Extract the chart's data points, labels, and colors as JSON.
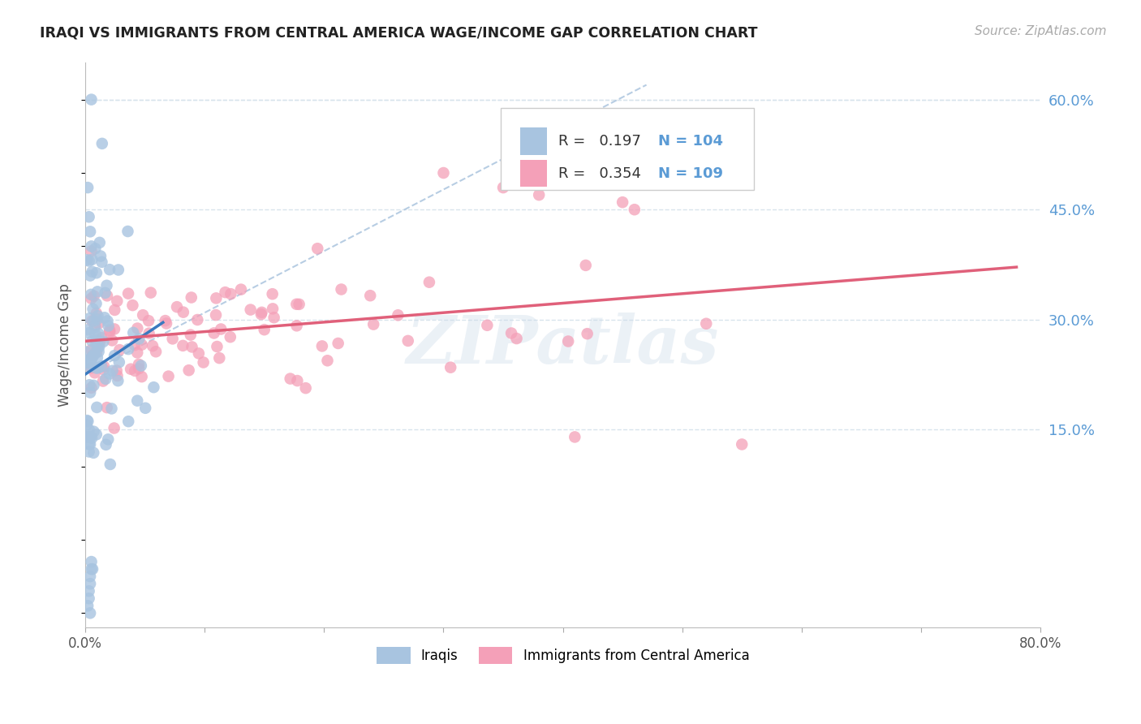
{
  "title": "IRAQI VS IMMIGRANTS FROM CENTRAL AMERICA WAGE/INCOME GAP CORRELATION CHART",
  "source": "Source: ZipAtlas.com",
  "ylabel": "Wage/Income Gap",
  "xlim": [
    0.0,
    0.8
  ],
  "ylim": [
    -0.12,
    0.65
  ],
  "ytick_vals": [
    0.15,
    0.3,
    0.45,
    0.6
  ],
  "legend_R_iraqi": "0.197",
  "legend_N_iraqi": "104",
  "legend_R_central": "0.354",
  "legend_N_central": "109",
  "iraqi_color": "#a8c4e0",
  "central_color": "#f4a0b8",
  "iraqi_line_color": "#3a7abf",
  "central_line_color": "#e0607a",
  "dashed_line_color": "#b0c8e0",
  "watermark": "ZIPatlas",
  "background_color": "#ffffff",
  "grid_color": "#d8e4ec",
  "right_tick_color": "#5b9bd5"
}
